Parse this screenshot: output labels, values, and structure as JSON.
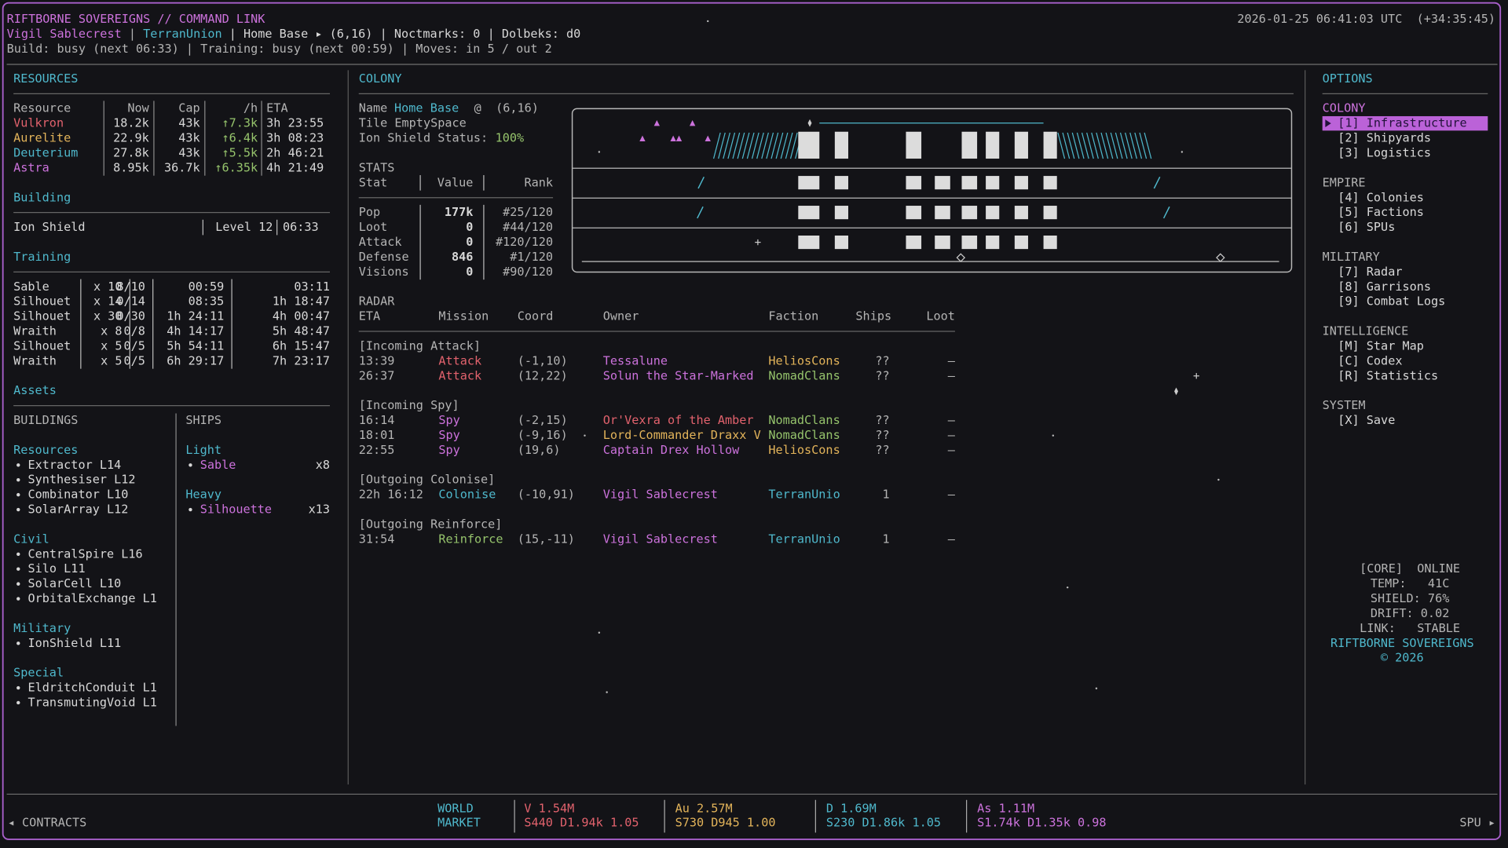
{
  "header": {
    "title": "RIFTBORNE SOVEREIGNS // COMMAND LINK",
    "clock": "2026-01-25 06:41:03 UTC  (+34:35:45)",
    "identity": [
      {
        "t": "Vigil Sablecrest",
        "c": "purple"
      },
      {
        "t": " | ",
        "c": "light"
      },
      {
        "t": "TerranUnion",
        "c": "cyan"
      },
      {
        "t": " | Home Base ▸ (6,16) | Noctmarks: 0 | Dolbeks: d0",
        "c": "white"
      }
    ],
    "status": "Build: busy (next 06:33) | Training: busy (next 00:59) | Moves: in 5 / out 2"
  },
  "resources": {
    "title": "RESOURCES",
    "columns": [
      "Resource",
      "Now",
      "Cap",
      "/h",
      "ETA"
    ],
    "rows": [
      {
        "name": "Vulkron",
        "color": "red",
        "now": "18.2k",
        "cap": "43k",
        "rate": "↑7.3k",
        "eta": "3h 23:55"
      },
      {
        "name": "Aurelite",
        "color": "yellow",
        "now": "22.9k",
        "cap": "43k",
        "rate": "↑6.4k",
        "eta": "3h 08:23"
      },
      {
        "name": "Deuterium",
        "color": "cyan",
        "now": "27.8k",
        "cap": "43k",
        "rate": "↑5.5k",
        "eta": "2h 46:21"
      },
      {
        "name": "Astra",
        "color": "purple",
        "now": "8.95k",
        "cap": "36.7k",
        "rate": "↑6.35k",
        "eta": "4h 21:49"
      }
    ]
  },
  "building": {
    "title": "Building",
    "rows": [
      [
        "Ion Shield",
        "Level 12",
        "06:33"
      ]
    ]
  },
  "training": {
    "title": "Training",
    "rows": [
      [
        "Sable",
        "x 10",
        "8/10",
        "00:59",
        "03:11"
      ],
      [
        "Silhouet",
        "x 14",
        "0/14",
        "08:35",
        "1h 18:47"
      ],
      [
        "Silhouet",
        "x 30",
        "0/30",
        "1h 24:11",
        "4h 00:47"
      ],
      [
        "Wraith",
        "x 8",
        "0/8",
        "4h 14:17",
        "5h 48:47"
      ],
      [
        "Silhouet",
        "x 5",
        "0/5",
        "5h 54:11",
        "6h 15:47"
      ],
      [
        "Wraith",
        "x 5",
        "0/5",
        "6h 29:17",
        "7h 23:17"
      ]
    ]
  },
  "assets": {
    "title": "Assets",
    "columns": [
      {
        "title": "BUILDINGS",
        "groups": [
          {
            "name": "Resources",
            "items": [
              "Extractor L14",
              "Synthesiser L12",
              "Combinator L10",
              "SolarArray L12"
            ]
          },
          {
            "name": "Civil",
            "items": [
              "CentralSpire L16",
              "Silo L11",
              "SolarCell L10",
              "OrbitalExchange L1"
            ]
          },
          {
            "name": "Military",
            "items": [
              "IonShield L11"
            ]
          },
          {
            "name": "Special",
            "items": [
              "EldritchConduit L1",
              "TransmutingVoid L1"
            ]
          }
        ]
      },
      {
        "title": "SHIPS",
        "groups": [
          {
            "name": "Light",
            "items": [
              {
                "name": "Sable",
                "count": "x8"
              }
            ]
          },
          {
            "name": "Heavy",
            "items": [
              {
                "name": "Silhouette",
                "count": "x13"
              }
            ]
          }
        ]
      }
    ]
  },
  "colony": {
    "title": "COLONY",
    "name_label": "Name",
    "name": "Home Base",
    "at": "@  (6,16)",
    "tile": "Tile EmptySpace",
    "shield_label": "Ion Shield Status:",
    "shield": "100%",
    "stats": {
      "title": "STATS",
      "columns": [
        "Stat",
        "Value",
        "Rank"
      ],
      "rows": [
        [
          "Pop",
          "177k",
          "#25/120"
        ],
        [
          "Loot",
          "0",
          "#44/120"
        ],
        [
          "Attack",
          "0",
          "#120/120"
        ],
        [
          "Defense",
          "846",
          "#1/120"
        ],
        [
          "Visions",
          "0",
          "#90/120"
        ]
      ]
    }
  },
  "radar": {
    "title": "RADAR",
    "columns": [
      "ETA",
      "Mission",
      "Coord",
      "Owner",
      "Faction",
      "Ships",
      "Loot"
    ],
    "groups": [
      {
        "name": "[Incoming Attack]",
        "rows": [
          {
            "eta": "13:39",
            "mission": "Attack",
            "coord": "(-1,10)",
            "owner": "Tessalune",
            "faction": "HeliosCons",
            "ships": "??",
            "loot": "–",
            "mission_color": "red",
            "owner_color": "purple",
            "faction_color": "yellow"
          },
          {
            "eta": "26:37",
            "mission": "Attack",
            "coord": "(12,22)",
            "owner": "Solun the Star-Marked",
            "faction": "NomadClans",
            "ships": "??",
            "loot": "–",
            "mission_color": "red",
            "owner_color": "purple",
            "faction_color": "green"
          }
        ]
      },
      {
        "name": "[Incoming Spy]",
        "rows": [
          {
            "eta": "16:14",
            "mission": "Spy",
            "coord": "(-2,15)",
            "owner": "Or'Vexra of the Amber",
            "faction": "NomadClans",
            "ships": "??",
            "loot": "–",
            "mission_color": "purple",
            "owner_color": "red",
            "faction_color": "green"
          },
          {
            "eta": "18:01",
            "mission": "Spy",
            "coord": "(-9,16)",
            "owner": "Lord-Commander Draxx V",
            "faction": "NomadClans",
            "ships": "??",
            "loot": "–",
            "mission_color": "purple",
            "owner_color": "yellow",
            "faction_color": "green"
          },
          {
            "eta": "22:55",
            "mission": "Spy",
            "coord": "(19,6)",
            "owner": "Captain Drex Hollow",
            "faction": "HeliosCons",
            "ships": "??",
            "loot": "–",
            "mission_color": "purple",
            "owner_color": "purple",
            "faction_color": "yellow"
          }
        ]
      },
      {
        "name": "[Outgoing Colonise]",
        "rows": [
          {
            "eta": "22h 16:12",
            "mission": "Colonise",
            "coord": "(-10,91)",
            "owner": "Vigil Sablecrest",
            "faction": "TerranUnio",
            "ships": "1",
            "loot": "–",
            "mission_color": "cyan",
            "owner_color": "purple",
            "faction_color": "cyan"
          }
        ]
      },
      {
        "name": "[Outgoing Reinforce]",
        "rows": [
          {
            "eta": "31:54",
            "mission": "Reinforce",
            "coord": "(15,-11)",
            "owner": "Vigil Sablecrest",
            "faction": "TerranUnio",
            "ships": "1",
            "loot": "–",
            "mission_color": "green",
            "owner_color": "purple",
            "faction_color": "cyan"
          }
        ]
      }
    ]
  },
  "options": {
    "title": "OPTIONS",
    "groups": [
      {
        "name": "COLONY",
        "active": true,
        "items": [
          {
            "label": "[1] Infrastructure",
            "selected": true
          },
          {
            "label": "[2] Shipyards",
            "selected": false
          },
          {
            "label": "[3] Logistics",
            "selected": false
          }
        ]
      },
      {
        "name": "EMPIRE",
        "active": false,
        "items": [
          {
            "label": "[4] Colonies",
            "selected": false
          },
          {
            "label": "[5] Factions",
            "selected": false
          },
          {
            "label": "[6] SPUs",
            "selected": false
          }
        ]
      },
      {
        "name": "MILITARY",
        "active": false,
        "items": [
          {
            "label": "[7] Radar",
            "selected": false
          },
          {
            "label": "[8] Garrisons",
            "selected": false
          },
          {
            "label": "[9] Combat Logs",
            "selected": false
          }
        ]
      },
      {
        "name": "INTELLIGENCE",
        "active": false,
        "items": [
          {
            "label": "[M] Star Map",
            "selected": false
          },
          {
            "label": "[C] Codex",
            "selected": false
          },
          {
            "label": "[R] Statistics",
            "selected": false
          }
        ]
      },
      {
        "name": "SYSTEM",
        "active": false,
        "items": [
          {
            "label": "[X] Save",
            "selected": false
          }
        ]
      }
    ]
  },
  "system": {
    "lines": [
      "[CORE]  ONLINE",
      "TEMP:   41C",
      "SHIELD: 76%",
      "DRIFT: 0.02",
      "LINK:   STABLE"
    ],
    "brand": "RIFTBORNE SOVEREIGNS",
    "copyright": "© 2026"
  },
  "footer": {
    "left": "◂ CONTRACTS",
    "market_label": [
      "WORLD",
      "MARKET"
    ],
    "markets": [
      {
        "top": "V 1.54M",
        "bottom": "S440 D1.94k 1.05",
        "color": "red"
      },
      {
        "top": "Au 2.57M",
        "bottom": "S730 D945 1.00",
        "color": "yellow"
      },
      {
        "top": "D 1.69M",
        "bottom": "S230 D1.86k 1.05",
        "color": "cyan"
      },
      {
        "top": "As 1.11M",
        "bottom": "S1.74k D1.35k 0.98",
        "color": "purple"
      }
    ],
    "right": "SPU ▸"
  }
}
